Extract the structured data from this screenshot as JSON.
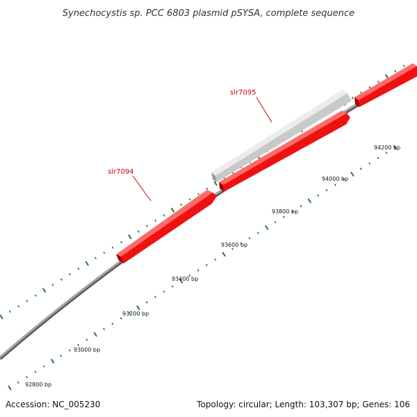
{
  "title": "Synechocystis sp. PCC 6803 plasmid pSYSA, complete sequence",
  "footer": {
    "accession": "Accession: NC_005230",
    "summary": "Topology: circular; Length: 103,307 bp; Genes: 106"
  },
  "colors": {
    "backbone": "#8c8c8c",
    "forward_gene": "#ee1111",
    "forward_gene_top": "#ff6a6a",
    "forward_gene_side": "#a50000",
    "other_gene": "#cccccc",
    "other_gene_top": "#ececec",
    "other_gene_side": "#9a9a9a",
    "tick": "#1f7a1f",
    "label_line": "#dd0000",
    "label_text": "#cc0000"
  },
  "scale": {
    "unit": "bp",
    "labels": [
      {
        "position": 92800,
        "text": "92800 bp"
      },
      {
        "position": 93000,
        "text": "93000 bp"
      },
      {
        "position": 93200,
        "text": "93200 bp"
      },
      {
        "position": 93400,
        "text": "93400 bp"
      },
      {
        "position": 93600,
        "text": "93600 bp"
      },
      {
        "position": 93800,
        "text": "93800 bp"
      },
      {
        "position": 94000,
        "text": "94000 bp"
      },
      {
        "position": 94200,
        "text": "94200 bp"
      }
    ]
  },
  "genes": [
    {
      "name": "slr7094",
      "label": "slr7094",
      "strand": "forward",
      "shown": true
    },
    {
      "name": "slr7095",
      "label": "slr7095",
      "strand": "forward",
      "shown": true
    },
    {
      "name": "unlabeled-forward-gene",
      "label": "",
      "strand": "forward",
      "shown": false
    },
    {
      "name": "unlabeled-grey-gene",
      "label": "",
      "strand": "other",
      "shown": false
    }
  ]
}
